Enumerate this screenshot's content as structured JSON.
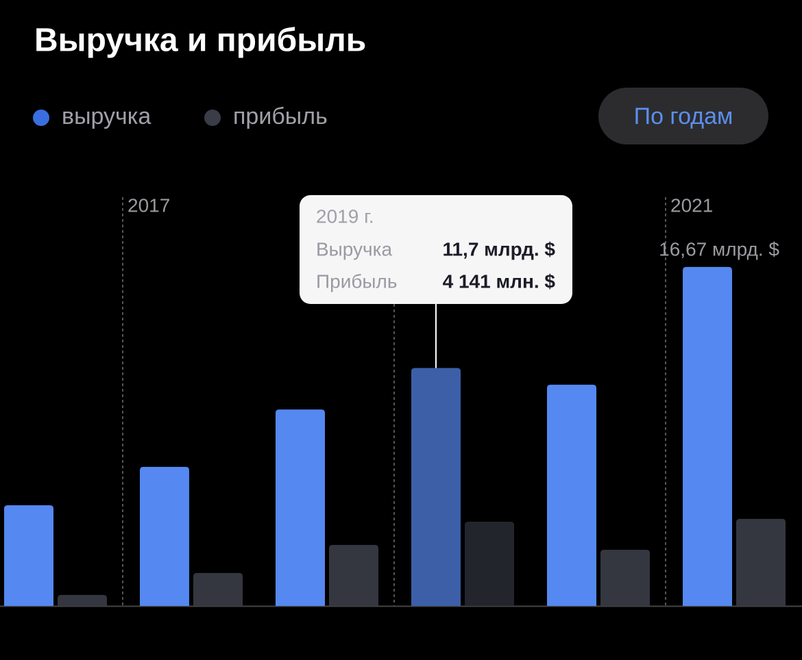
{
  "button": "По годам",
  "chart_data": {
    "type": "bar",
    "title": "Выручка и прибыль",
    "categories": [
      null,
      "2017",
      null,
      "2019 г.",
      null,
      "2021"
    ],
    "series": [
      {
        "name": "выручка",
        "color": "#5588f0",
        "highlight_color": "#3c5fa8",
        "values": [
          4.95,
          6.84,
          9.66,
          11.7,
          10.88,
          16.67
        ],
        "value_labels": [
          null,
          null,
          null,
          "11,7 млрд. $",
          null,
          "16,67 млрд. $"
        ]
      },
      {
        "name": "прибыль",
        "color": "#343740",
        "highlight_color": "#23252d",
        "values": [
          0.54,
          1.62,
          3.0,
          4.141,
          2.76,
          4.28
        ],
        "value_labels": [
          null,
          null,
          null,
          "4 141 млн. $",
          null,
          null
        ]
      }
    ],
    "tooltip_labels": [
      "Выручка",
      "Прибыль"
    ],
    "ylim": [
      0,
      20
    ]
  }
}
